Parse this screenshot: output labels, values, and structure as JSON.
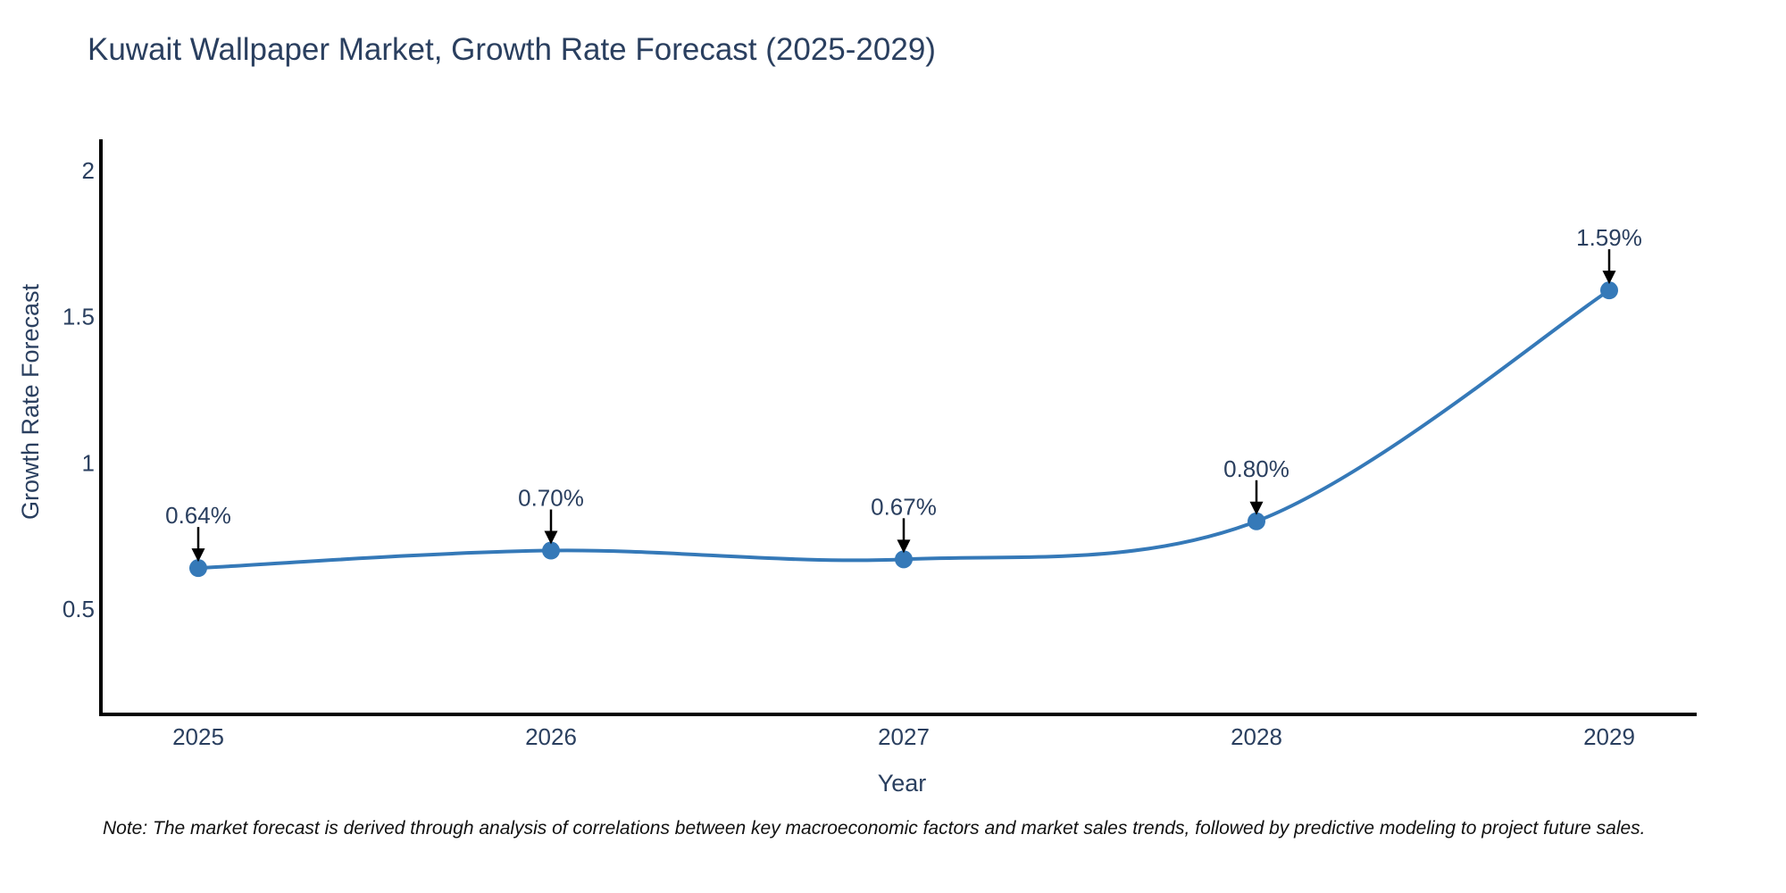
{
  "title": "Kuwait Wallpaper Market, Growth Rate Forecast (2025-2029)",
  "chart_data": {
    "type": "line",
    "line_shape": "spline",
    "x": [
      2025,
      2026,
      2027,
      2028,
      2029
    ],
    "y": [
      0.64,
      0.7,
      0.67,
      0.8,
      1.59
    ],
    "point_labels": [
      "0.64%",
      "0.70%",
      "0.67%",
      "0.80%",
      "1.59%"
    ],
    "xtick_labels": [
      "2025",
      "2026",
      "2027",
      "2028",
      "2029"
    ],
    "yticks": [
      0.5,
      1,
      1.5,
      2
    ],
    "ytick_labels": [
      "0.5",
      "1",
      "1.5",
      "2"
    ],
    "xlabel": "Year",
    "ylabel": "Growth Rate Forecast",
    "xlim": [
      2024.72,
      2029.25
    ],
    "ylim": [
      0.14,
      2.09
    ],
    "grid": false,
    "legend": "none",
    "line_color": "#3579b8",
    "marker_color": "#3579b8",
    "axis_line_color": "#000000",
    "annotation_arrow_color": "#000000"
  },
  "note": "Note: The market forecast is derived through analysis of correlations between key macroeconomic factors and market sales trends, followed by predictive modeling to project future sales.",
  "colors": {
    "title_text": "#2a3f5f",
    "tick_text": "#2a3f5f",
    "background": "#ffffff"
  }
}
